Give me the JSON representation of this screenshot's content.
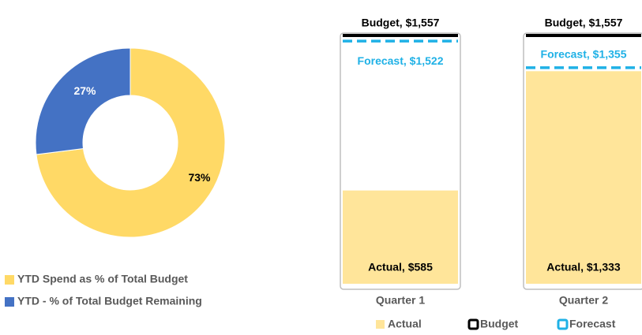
{
  "chart_data": [
    {
      "type": "pie",
      "categories": [
        "YTD Spend as % of Total  Budget",
        "YTD - % of Total  Budget Remaining"
      ],
      "values": [
        73,
        27
      ],
      "value_labels": [
        "73%",
        "27%"
      ],
      "colors": [
        "#ffd966",
        "#4472c4"
      ],
      "legend": "bottom-left"
    },
    {
      "type": "bar",
      "categories": [
        "Quarter 1",
        "Quarter 2"
      ],
      "series": [
        {
          "name": "Actual",
          "color": "#ffe59a",
          "values": [
            585,
            1333
          ],
          "value_labels": [
            "Actual, $585",
            "Actual, $1,333"
          ]
        },
        {
          "name": "Budget",
          "color": "#000000",
          "values": [
            1557,
            1557
          ],
          "value_labels": [
            "Budget, $1,557",
            "Budget, $1,557"
          ]
        },
        {
          "name": "Forecast",
          "color": "#1fb1e6",
          "values": [
            1522,
            1355
          ],
          "value_labels": [
            "Forecast, $1,522",
            "Forecast, $1,355"
          ]
        }
      ],
      "legend": "bottom"
    }
  ]
}
